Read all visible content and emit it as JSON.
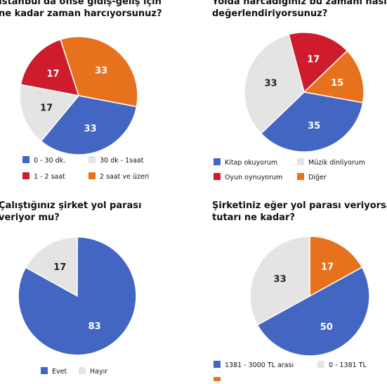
{
  "colors": {
    "blue": "#4266c2",
    "light": "#e4e4e4",
    "red": "#cf1c2d",
    "orange": "#e7711d"
  },
  "chart_data": [
    {
      "type": "pie",
      "title": "İstanbul'da ofise gidiş-geliş için ne kadar zaman harcıyorsunuz?",
      "title_lines": [
        "İstanbul'da ofise gidiş-geliş için",
        "ne kadar zaman harcıyorsunuz?"
      ],
      "slices": [
        {
          "label": "2 saat ve üzeri",
          "value": 33,
          "color": "#e7711d"
        },
        {
          "label": "0 - 30 dk.",
          "value": 33,
          "color": "#4266c2"
        },
        {
          "label": "30 dk - 1saat",
          "value": 17,
          "color": "#e4e4e4"
        },
        {
          "label": "1 - 2 saat",
          "value": 17,
          "color": "#cf1c2d"
        }
      ],
      "legend": [
        "0 - 30 dk.",
        "30 dk - 1saat",
        "1 - 2 saat",
        "2 saat ve üzeri"
      ]
    },
    {
      "type": "pie",
      "title": "Yolda harcadığınız bu zamanı nasıl değerlendiriyorsunuz?",
      "title_lines": [
        "Yolda harcadığınız bu zamanı nasıl",
        "değerlendiriyorsunuz?"
      ],
      "slices": [
        {
          "label": "Oyun oynuyorum",
          "value": 17,
          "color": "#cf1c2d"
        },
        {
          "label": "Diğer",
          "value": 15,
          "color": "#e7711d"
        },
        {
          "label": "Kitap okuyorum",
          "value": 35,
          "color": "#4266c2"
        },
        {
          "label": "Müzik dinliyorum",
          "value": 33,
          "color": "#e4e4e4"
        }
      ],
      "legend": [
        "Kitap okuyorum",
        "Müzik dinliyorum",
        "Oyun oynuyorum",
        "Diğer"
      ]
    },
    {
      "type": "pie",
      "title": "Çalıştığınız şirket yol parası veriyor mu?",
      "title_lines": [
        "Çalıştığınız şirket yol parası",
        "veriyor mu?"
      ],
      "slices": [
        {
          "label": "Hayır",
          "value": 17,
          "color": "#e4e4e4"
        },
        {
          "label": "Evet",
          "value": 83,
          "color": "#4266c2"
        }
      ],
      "legend": [
        "Evet",
        "Hayır"
      ]
    },
    {
      "type": "pie",
      "title": "Şirketiniz eğer yol parası veriyorsa tutarı ne kadar?",
      "title_lines": [
        "Şirketiniz eğer yol parası veriyorsa",
        "tutarı ne kadar?"
      ],
      "slices": [
        {
          "label": "0 - 1381 TL",
          "value": 17,
          "color": "#e7711d"
        },
        {
          "label": "1381 - 3000 TL arası",
          "value": 50,
          "color": "#4266c2"
        },
        {
          "label": "",
          "value": 33,
          "color": "#e4e4e4"
        }
      ],
      "legend": [
        "1381 - 3000 TL arası",
        "0 - 1381 TL"
      ]
    }
  ]
}
